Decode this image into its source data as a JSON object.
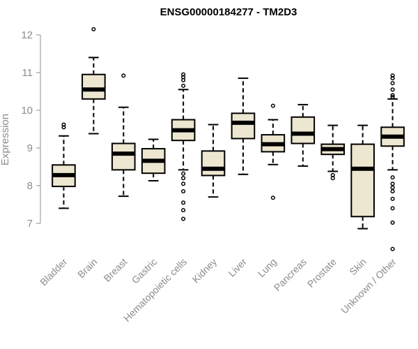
{
  "chart_data": {
    "type": "boxplot",
    "title": "ENSG00000184277 - TM2D3",
    "xlabel": "",
    "ylabel": "Expression",
    "ylim": [
      6.2,
      12.3
    ],
    "yticks": [
      7,
      8,
      9,
      10,
      11,
      12
    ],
    "box_fill": "#ede6d0",
    "box_stroke": "#000000",
    "categories": [
      "Bladder",
      "Brain",
      "Breast",
      "Gastric",
      "Hematopoietic cells",
      "Kidney",
      "Liver",
      "Lung",
      "Pancreas",
      "Prostate",
      "Skin",
      "Unknown / Other"
    ],
    "boxes": [
      {
        "name": "Bladder",
        "whisker_low": 7.4,
        "q1": 7.98,
        "median": 8.28,
        "q3": 8.55,
        "whisker_high": 9.32,
        "outliers": [
          9.55,
          9.62
        ]
      },
      {
        "name": "Brain",
        "whisker_low": 9.38,
        "q1": 10.3,
        "median": 10.55,
        "q3": 10.95,
        "whisker_high": 11.4,
        "outliers": [
          12.15
        ]
      },
      {
        "name": "Breast",
        "whisker_low": 7.72,
        "q1": 8.42,
        "median": 8.85,
        "q3": 9.12,
        "whisker_high": 10.08,
        "outliers": [
          10.92
        ]
      },
      {
        "name": "Gastric",
        "whisker_low": 8.13,
        "q1": 8.33,
        "median": 8.66,
        "q3": 8.98,
        "whisker_high": 9.23,
        "outliers": []
      },
      {
        "name": "Hematopoietic cells",
        "whisker_low": 8.42,
        "q1": 9.2,
        "median": 9.47,
        "q3": 9.75,
        "whisker_high": 10.55,
        "outliers": [
          10.65,
          10.8,
          10.88,
          10.95,
          8.32,
          8.2,
          8.05,
          7.85,
          7.55,
          7.35,
          7.12
        ]
      },
      {
        "name": "Kidney",
        "whisker_low": 7.7,
        "q1": 8.27,
        "median": 8.45,
        "q3": 8.92,
        "whisker_high": 9.62,
        "outliers": []
      },
      {
        "name": "Liver",
        "whisker_low": 8.3,
        "q1": 9.25,
        "median": 9.67,
        "q3": 9.92,
        "whisker_high": 10.85,
        "outliers": []
      },
      {
        "name": "Lung",
        "whisker_low": 8.56,
        "q1": 8.9,
        "median": 9.1,
        "q3": 9.35,
        "whisker_high": 9.75,
        "outliers": [
          10.12,
          7.68
        ]
      },
      {
        "name": "Pancreas",
        "whisker_low": 8.52,
        "q1": 9.12,
        "median": 9.38,
        "q3": 9.82,
        "whisker_high": 10.15,
        "outliers": []
      },
      {
        "name": "Prostate",
        "whisker_low": 8.38,
        "q1": 8.83,
        "median": 8.97,
        "q3": 9.1,
        "whisker_high": 9.6,
        "outliers": [
          8.28,
          8.2
        ]
      },
      {
        "name": "Skin",
        "whisker_low": 6.86,
        "q1": 7.18,
        "median": 8.45,
        "q3": 9.1,
        "whisker_high": 9.6,
        "outliers": []
      },
      {
        "name": "Unknown / Other",
        "whisker_low": 8.42,
        "q1": 9.05,
        "median": 9.3,
        "q3": 9.55,
        "whisker_high": 10.3,
        "outliers": [
          10.4,
          10.55,
          10.72,
          10.85,
          10.92,
          10.35,
          8.22,
          8.05,
          7.95,
          7.85,
          7.65,
          7.4,
          7.02,
          6.32
        ]
      }
    ]
  }
}
